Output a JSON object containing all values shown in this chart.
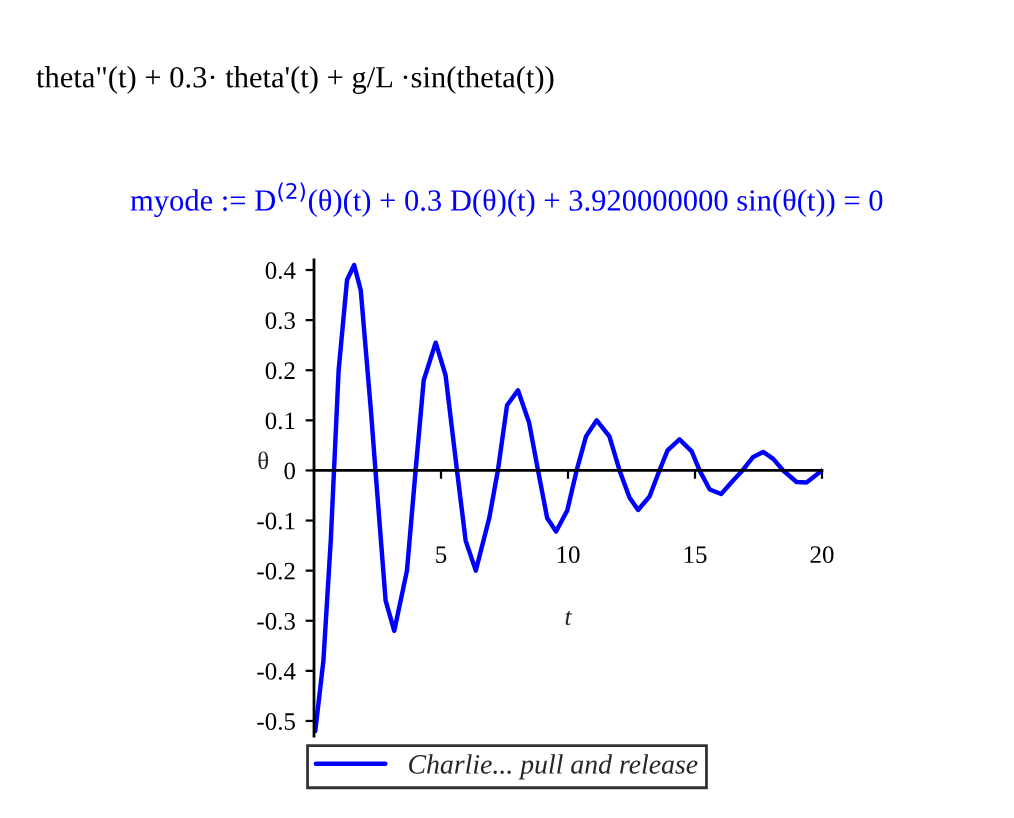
{
  "chart_data": {
    "type": "line",
    "xlabel": "t",
    "ylabel": "θ",
    "annotations": [
      "theta\"(t) + 0.3· theta'(t) + g/L ·sin(theta(t))",
      "myode := D$^{(2)}$(θ)(t) + 0.3 D(θ)(t) + 3.920000000 sin(θ(t)) = 0"
    ],
    "series": [
      {
        "name": "Charlie... pull and release",
        "color": "#0000ff",
        "x": [
          0.05,
          0.37,
          0.66,
          0.97,
          1.3,
          1.58,
          1.84,
          2.24,
          2.42,
          2.82,
          3.16,
          3.66,
          4.0,
          4.32,
          4.79,
          5.18,
          5.63,
          5.97,
          6.37,
          6.9,
          7.24,
          7.6,
          8.03,
          8.47,
          8.82,
          9.18,
          9.53,
          9.97,
          10.34,
          10.71,
          11.13,
          11.63,
          12.03,
          12.42,
          12.76,
          13.21,
          13.6,
          13.92,
          14.39,
          14.87,
          15.18,
          15.58,
          16.03,
          16.5,
          16.87,
          17.29,
          17.68,
          18.08,
          18.47,
          19.0,
          19.39,
          20.0
        ],
        "values": [
          -0.52,
          -0.38,
          -0.14,
          0.2,
          0.38,
          0.41,
          0.36,
          0.12,
          0.0,
          -0.26,
          -0.32,
          -0.2,
          0.0,
          0.18,
          0.255,
          0.19,
          0.0,
          -0.14,
          -0.2,
          -0.095,
          0.0,
          0.13,
          0.16,
          0.095,
          0.0,
          -0.095,
          -0.122,
          -0.08,
          0.0,
          0.068,
          0.1,
          0.068,
          0.0,
          -0.054,
          -0.079,
          -0.052,
          0.0,
          0.04,
          0.062,
          0.038,
          0.0,
          -0.038,
          -0.047,
          -0.02,
          0.0,
          0.027,
          0.037,
          0.023,
          0.0,
          -0.023,
          -0.024,
          0.0
        ]
      }
    ],
    "xlim": [
      0,
      20
    ],
    "ylim": [
      -0.53,
      0.42
    ],
    "xticks": [
      5,
      10,
      15,
      20
    ],
    "yticks": [
      -0.5,
      -0.4,
      -0.3,
      -0.2,
      -0.1,
      0,
      0.1,
      0.2,
      0.3,
      0.4
    ],
    "legend": "bottom",
    "line_style": "solid",
    "marker": "none"
  }
}
